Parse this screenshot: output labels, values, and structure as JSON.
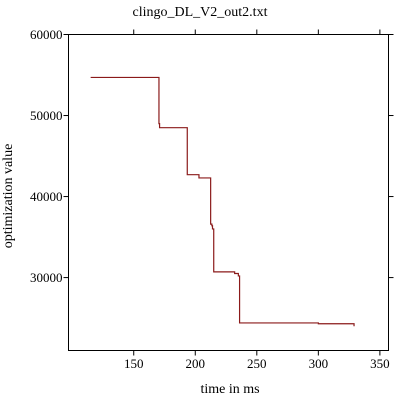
{
  "chart_data": {
    "type": "line",
    "title": "clingo_DL_V2_out2.txt",
    "xlabel": "time in ms",
    "ylabel": "optimization value",
    "xlim": [
      97,
      357
    ],
    "ylim": [
      21000,
      60000
    ],
    "x_ticks": [
      150,
      200,
      250,
      300,
      350
    ],
    "y_ticks": [
      30000,
      40000,
      50000,
      60000
    ],
    "x_tick_labels": [
      "150",
      "200",
      "250",
      "300",
      "350"
    ],
    "y_tick_labels": [
      "30000",
      "40000",
      "50000",
      "60000"
    ],
    "grid": false,
    "line_color": "#8b1a1a",
    "series": [
      {
        "step": "post",
        "x": [
          115,
          170,
          170.5,
          171,
          193,
          193.5,
          203,
          209,
          209.5,
          211,
          212.5,
          213.5,
          214,
          215,
          215.5,
          231,
          232,
          232.5,
          235,
          236,
          236.5,
          270,
          300,
          329,
          329
        ],
        "y": [
          54700,
          54700,
          49000,
          48500,
          48500,
          42700,
          42300,
          42300,
          42300,
          42300,
          36600,
          36400,
          36000,
          30700,
          30700,
          30700,
          30500,
          30500,
          30200,
          24400,
          24400,
          24400,
          24300,
          24300,
          24000
        ]
      }
    ]
  }
}
